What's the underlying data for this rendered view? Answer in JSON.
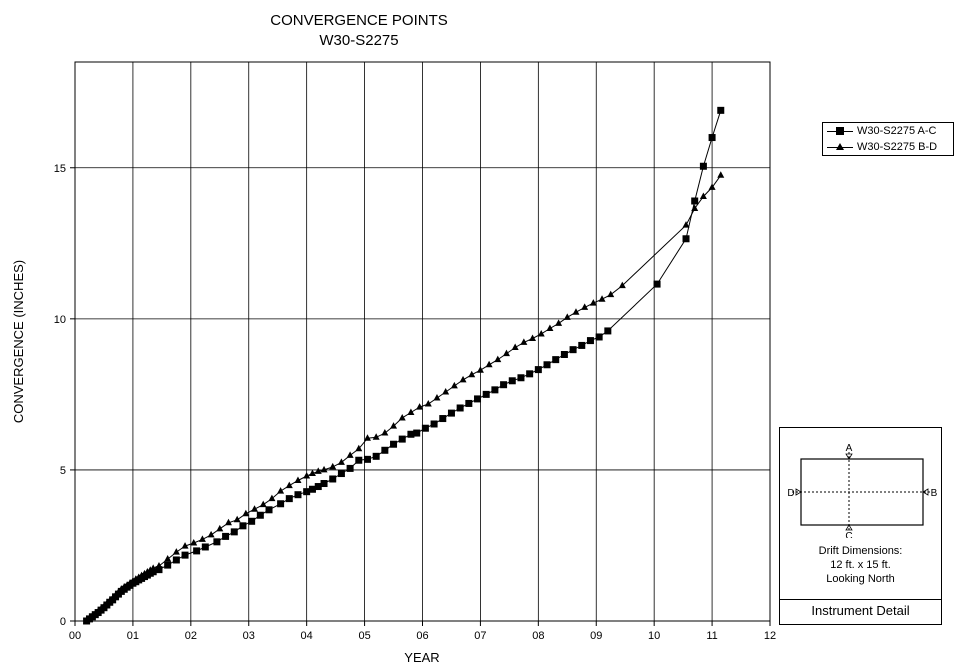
{
  "chart_data": {
    "type": "line",
    "title": "CONVERGENCE POINTS",
    "subtitle": "W30-S2275",
    "xlabel": "YEAR",
    "ylabel": "CONVERGENCE (INCHES)",
    "xlim": [
      2000,
      2012
    ],
    "ylim": [
      0,
      18.5
    ],
    "x_ticks": [
      {
        "value": 2000,
        "label": "00"
      },
      {
        "value": 2001,
        "label": "01"
      },
      {
        "value": 2002,
        "label": "02"
      },
      {
        "value": 2003,
        "label": "03"
      },
      {
        "value": 2004,
        "label": "04"
      },
      {
        "value": 2005,
        "label": "05"
      },
      {
        "value": 2006,
        "label": "06"
      },
      {
        "value": 2007,
        "label": "07"
      },
      {
        "value": 2008,
        "label": "08"
      },
      {
        "value": 2009,
        "label": "09"
      },
      {
        "value": 2010,
        "label": "10"
      },
      {
        "value": 2011,
        "label": "11"
      },
      {
        "value": 2012,
        "label": "12"
      }
    ],
    "y_ticks": [
      {
        "value": 0,
        "label": "0"
      },
      {
        "value": 5,
        "label": "5"
      },
      {
        "value": 10,
        "label": "10"
      },
      {
        "value": 15,
        "label": "15"
      }
    ],
    "grid": true,
    "legend_position": "top-right, outside plot",
    "series": [
      {
        "name": "W30-S2275 A-C",
        "marker": "square",
        "color": "#000000",
        "points": [
          [
            2000.2,
            0.0
          ],
          [
            2000.25,
            0.07
          ],
          [
            2000.3,
            0.14
          ],
          [
            2000.35,
            0.21
          ],
          [
            2000.4,
            0.28
          ],
          [
            2000.45,
            0.36
          ],
          [
            2000.5,
            0.44
          ],
          [
            2000.55,
            0.53
          ],
          [
            2000.6,
            0.62
          ],
          [
            2000.65,
            0.7
          ],
          [
            2000.7,
            0.8
          ],
          [
            2000.75,
            0.89
          ],
          [
            2000.8,
            0.98
          ],
          [
            2000.85,
            1.05
          ],
          [
            2000.9,
            1.12
          ],
          [
            2000.95,
            1.18
          ],
          [
            2001.0,
            1.25
          ],
          [
            2001.05,
            1.3
          ],
          [
            2001.1,
            1.36
          ],
          [
            2001.15,
            1.41
          ],
          [
            2001.2,
            1.47
          ],
          [
            2001.25,
            1.52
          ],
          [
            2001.3,
            1.58
          ],
          [
            2001.35,
            1.63
          ],
          [
            2001.45,
            1.7
          ],
          [
            2001.6,
            1.85
          ],
          [
            2001.75,
            2.02
          ],
          [
            2001.9,
            2.18
          ],
          [
            2002.1,
            2.32
          ],
          [
            2002.25,
            2.45
          ],
          [
            2002.45,
            2.62
          ],
          [
            2002.6,
            2.8
          ],
          [
            2002.75,
            2.95
          ],
          [
            2002.9,
            3.15
          ],
          [
            2003.05,
            3.3
          ],
          [
            2003.2,
            3.5
          ],
          [
            2003.35,
            3.68
          ],
          [
            2003.55,
            3.88
          ],
          [
            2003.7,
            4.05
          ],
          [
            2003.85,
            4.18
          ],
          [
            2004.0,
            4.28
          ],
          [
            2004.1,
            4.36
          ],
          [
            2004.2,
            4.45
          ],
          [
            2004.3,
            4.55
          ],
          [
            2004.45,
            4.7
          ],
          [
            2004.6,
            4.88
          ],
          [
            2004.75,
            5.05
          ],
          [
            2004.9,
            5.32
          ],
          [
            2005.05,
            5.35
          ],
          [
            2005.2,
            5.45
          ],
          [
            2005.35,
            5.65
          ],
          [
            2005.5,
            5.85
          ],
          [
            2005.65,
            6.02
          ],
          [
            2005.8,
            6.18
          ],
          [
            2005.9,
            6.22
          ],
          [
            2006.05,
            6.38
          ],
          [
            2006.2,
            6.52
          ],
          [
            2006.35,
            6.7
          ],
          [
            2006.5,
            6.88
          ],
          [
            2006.65,
            7.05
          ],
          [
            2006.8,
            7.2
          ],
          [
            2006.95,
            7.35
          ],
          [
            2007.1,
            7.5
          ],
          [
            2007.25,
            7.65
          ],
          [
            2007.4,
            7.82
          ],
          [
            2007.55,
            7.95
          ],
          [
            2007.7,
            8.05
          ],
          [
            2007.85,
            8.18
          ],
          [
            2008.0,
            8.32
          ],
          [
            2008.15,
            8.48
          ],
          [
            2008.3,
            8.65
          ],
          [
            2008.45,
            8.82
          ],
          [
            2008.6,
            8.98
          ],
          [
            2008.75,
            9.12
          ],
          [
            2008.9,
            9.28
          ],
          [
            2009.05,
            9.4
          ],
          [
            2009.2,
            9.6
          ],
          [
            2010.05,
            11.15
          ],
          [
            2010.55,
            12.65
          ],
          [
            2010.7,
            13.9
          ],
          [
            2010.85,
            15.05
          ],
          [
            2011.0,
            16.0
          ],
          [
            2011.15,
            16.9
          ]
        ]
      },
      {
        "name": "W30-S2275 B-D",
        "marker": "triangle",
        "color": "#000000",
        "points": [
          [
            2000.2,
            0.0
          ],
          [
            2000.25,
            0.08
          ],
          [
            2000.3,
            0.16
          ],
          [
            2000.35,
            0.24
          ],
          [
            2000.4,
            0.32
          ],
          [
            2000.45,
            0.4
          ],
          [
            2000.5,
            0.48
          ],
          [
            2000.55,
            0.57
          ],
          [
            2000.6,
            0.66
          ],
          [
            2000.65,
            0.75
          ],
          [
            2000.7,
            0.85
          ],
          [
            2000.75,
            0.95
          ],
          [
            2000.8,
            1.05
          ],
          [
            2000.85,
            1.12
          ],
          [
            2000.9,
            1.18
          ],
          [
            2000.95,
            1.25
          ],
          [
            2001.0,
            1.32
          ],
          [
            2001.05,
            1.38
          ],
          [
            2001.1,
            1.44
          ],
          [
            2001.15,
            1.5
          ],
          [
            2001.2,
            1.56
          ],
          [
            2001.25,
            1.62
          ],
          [
            2001.3,
            1.68
          ],
          [
            2001.35,
            1.74
          ],
          [
            2001.45,
            1.82
          ],
          [
            2001.6,
            2.05
          ],
          [
            2001.75,
            2.28
          ],
          [
            2001.9,
            2.48
          ],
          [
            2002.05,
            2.58
          ],
          [
            2002.2,
            2.7
          ],
          [
            2002.35,
            2.85
          ],
          [
            2002.5,
            3.05
          ],
          [
            2002.65,
            3.25
          ],
          [
            2002.8,
            3.35
          ],
          [
            2002.95,
            3.55
          ],
          [
            2003.1,
            3.7
          ],
          [
            2003.25,
            3.85
          ],
          [
            2003.4,
            4.05
          ],
          [
            2003.55,
            4.3
          ],
          [
            2003.7,
            4.48
          ],
          [
            2003.85,
            4.65
          ],
          [
            2004.0,
            4.8
          ],
          [
            2004.1,
            4.88
          ],
          [
            2004.2,
            4.95
          ],
          [
            2004.3,
            5.0
          ],
          [
            2004.45,
            5.1
          ],
          [
            2004.6,
            5.25
          ],
          [
            2004.75,
            5.48
          ],
          [
            2004.9,
            5.7
          ],
          [
            2005.05,
            6.05
          ],
          [
            2005.2,
            6.08
          ],
          [
            2005.35,
            6.22
          ],
          [
            2005.5,
            6.45
          ],
          [
            2005.65,
            6.72
          ],
          [
            2005.8,
            6.9
          ],
          [
            2005.95,
            7.08
          ],
          [
            2006.1,
            7.18
          ],
          [
            2006.25,
            7.38
          ],
          [
            2006.4,
            7.58
          ],
          [
            2006.55,
            7.78
          ],
          [
            2006.7,
            7.98
          ],
          [
            2006.85,
            8.15
          ],
          [
            2007.0,
            8.3
          ],
          [
            2007.15,
            8.48
          ],
          [
            2007.3,
            8.65
          ],
          [
            2007.45,
            8.85
          ],
          [
            2007.6,
            9.05
          ],
          [
            2007.75,
            9.22
          ],
          [
            2007.9,
            9.35
          ],
          [
            2008.05,
            9.5
          ],
          [
            2008.2,
            9.68
          ],
          [
            2008.35,
            9.85
          ],
          [
            2008.5,
            10.05
          ],
          [
            2008.65,
            10.22
          ],
          [
            2008.8,
            10.38
          ],
          [
            2008.95,
            10.52
          ],
          [
            2009.1,
            10.65
          ],
          [
            2009.25,
            10.8
          ],
          [
            2009.45,
            11.1
          ],
          [
            2010.55,
            13.1
          ],
          [
            2010.7,
            13.65
          ],
          [
            2010.85,
            14.05
          ],
          [
            2011.0,
            14.35
          ],
          [
            2011.15,
            14.75
          ]
        ]
      }
    ]
  },
  "instrument_detail": {
    "label_a": "A",
    "label_b": "B",
    "label_c": "C",
    "label_d": "D",
    "line1": "Drift Dimensions:",
    "line2": "12 ft. x 15 ft.",
    "line3": "Looking North",
    "caption": "Instrument Detail"
  }
}
